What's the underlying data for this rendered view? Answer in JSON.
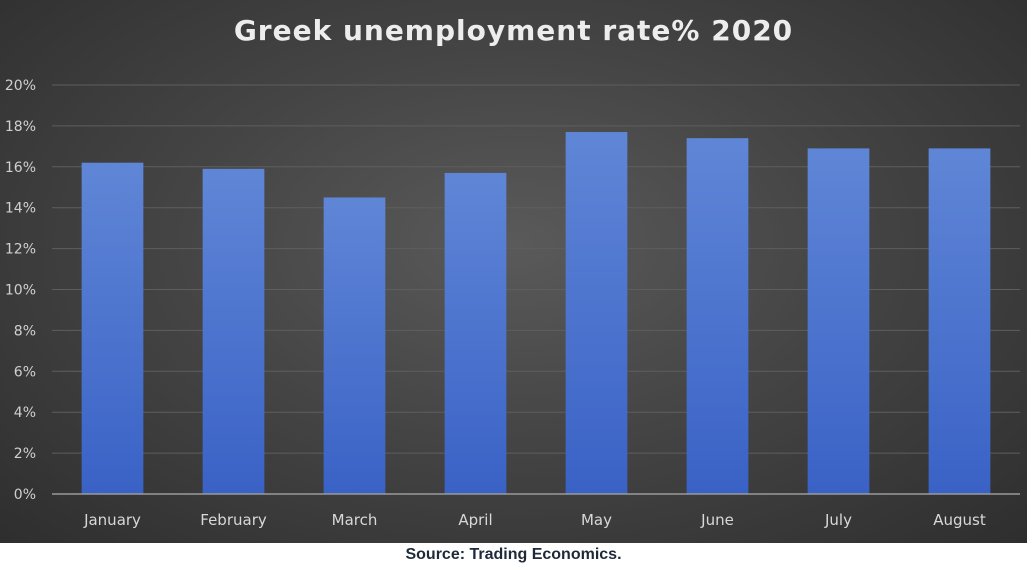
{
  "chart_data": {
    "type": "bar",
    "title": "Greek unemployment rate% 2020",
    "categories": [
      "January",
      "February",
      "March",
      "April",
      "May",
      "June",
      "July",
      "August"
    ],
    "values": [
      16.2,
      15.9,
      14.5,
      15.7,
      17.7,
      17.4,
      16.9,
      16.9
    ],
    "ylim": [
      0,
      20
    ],
    "y_ticks": [
      "0%",
      "2%",
      "4%",
      "6%",
      "8%",
      "10%",
      "12%",
      "14%",
      "16%",
      "18%",
      "20%"
    ],
    "xlabel": "",
    "ylabel": "",
    "grid": true,
    "legend": "none",
    "colors": {
      "bar_top": "#5f86d6",
      "bar_bottom": "#3a62c6",
      "gridline": "#5e5e5e",
      "axis": "#9a9a9a"
    }
  },
  "source": "Source: Trading Economics."
}
